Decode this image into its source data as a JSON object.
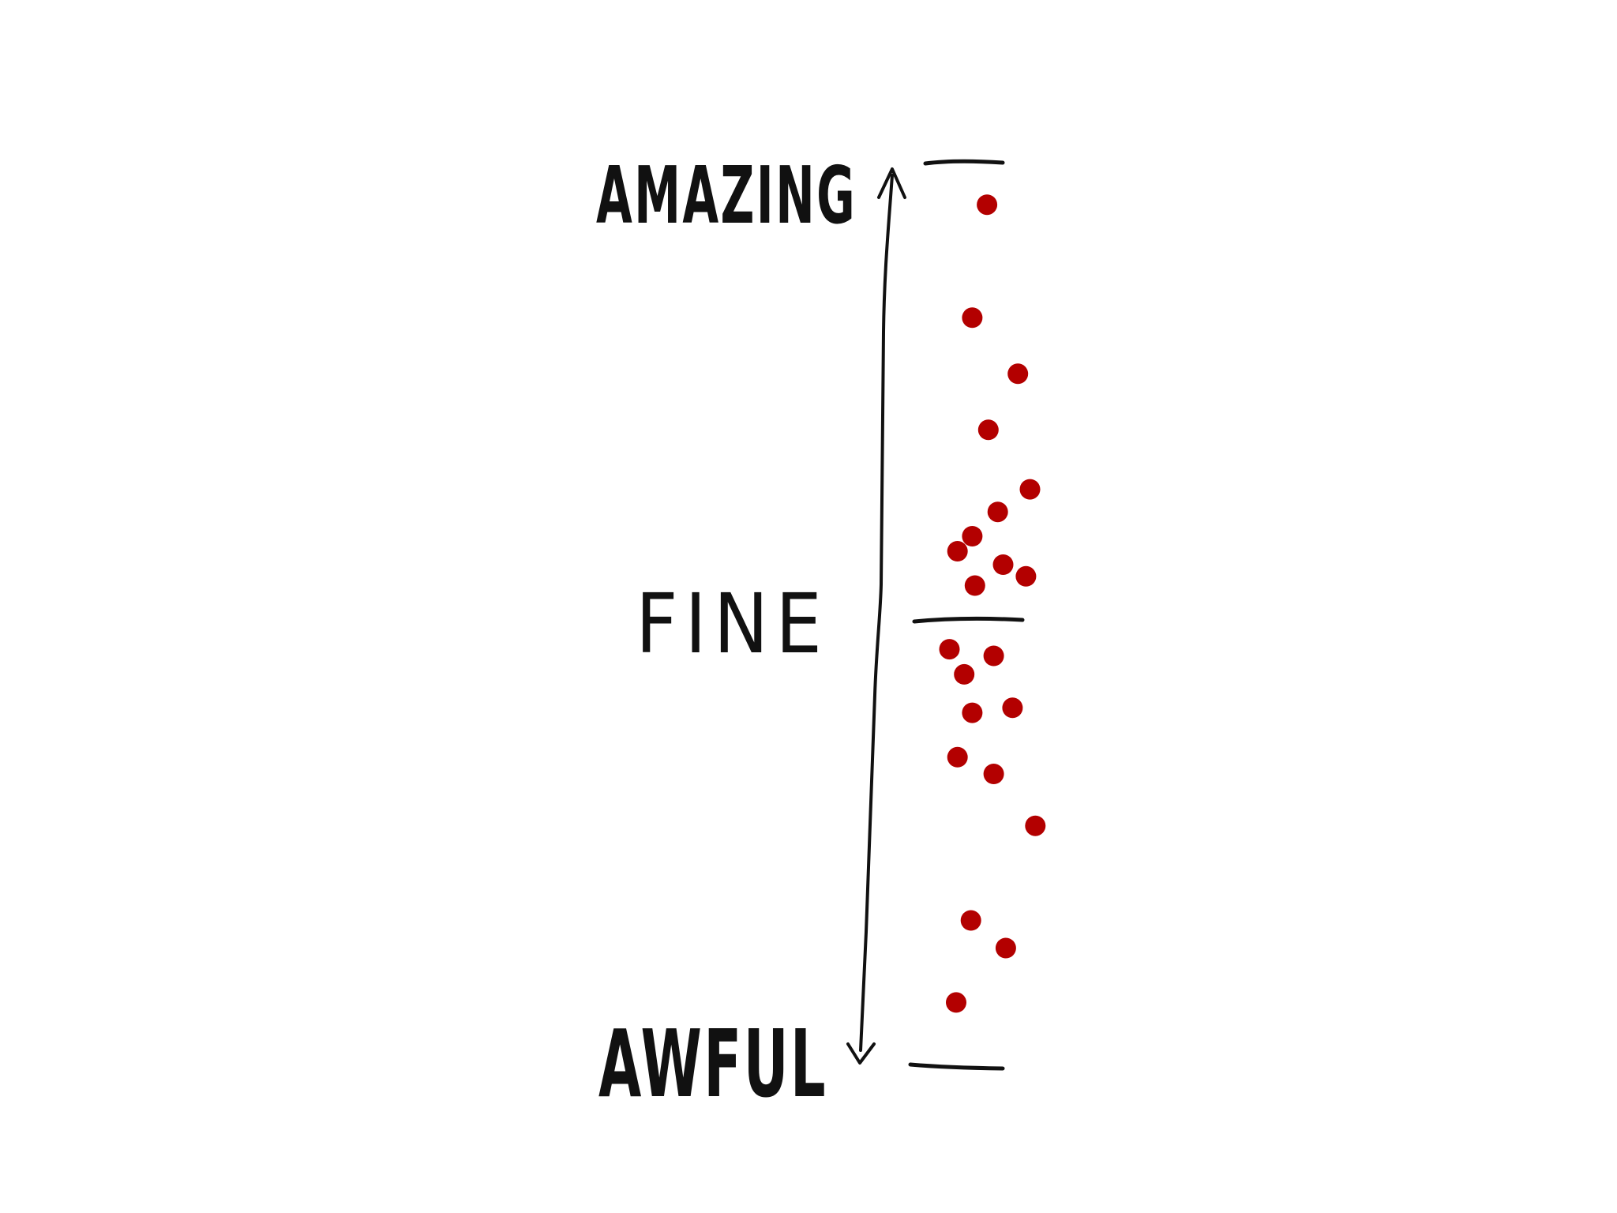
{
  "scale": {
    "top_label": "AMAZING",
    "middle_label": "FINE",
    "bottom_label": "AWFUL"
  },
  "colors": {
    "ink": "#111111",
    "dot": "#b30000",
    "background": "#ffffff"
  },
  "chart_data": {
    "type": "scatter",
    "y_range": [
      0,
      1
    ],
    "points": [
      {
        "x": 0.53,
        "y": 0.98
      },
      {
        "x": 0.42,
        "y": 0.845
      },
      {
        "x": 0.76,
        "y": 0.778
      },
      {
        "x": 0.54,
        "y": 0.711
      },
      {
        "x": 0.85,
        "y": 0.64
      },
      {
        "x": 0.61,
        "y": 0.613
      },
      {
        "x": 0.42,
        "y": 0.584
      },
      {
        "x": 0.31,
        "y": 0.566
      },
      {
        "x": 0.65,
        "y": 0.55
      },
      {
        "x": 0.82,
        "y": 0.536
      },
      {
        "x": 0.44,
        "y": 0.525
      },
      {
        "x": 0.25,
        "y": 0.449
      },
      {
        "x": 0.58,
        "y": 0.441
      },
      {
        "x": 0.36,
        "y": 0.419
      },
      {
        "x": 0.72,
        "y": 0.379
      },
      {
        "x": 0.42,
        "y": 0.373
      },
      {
        "x": 0.31,
        "y": 0.32
      },
      {
        "x": 0.58,
        "y": 0.3
      },
      {
        "x": 0.89,
        "y": 0.238
      },
      {
        "x": 0.41,
        "y": 0.125
      },
      {
        "x": 0.67,
        "y": 0.092
      },
      {
        "x": 0.3,
        "y": 0.027
      }
    ]
  }
}
